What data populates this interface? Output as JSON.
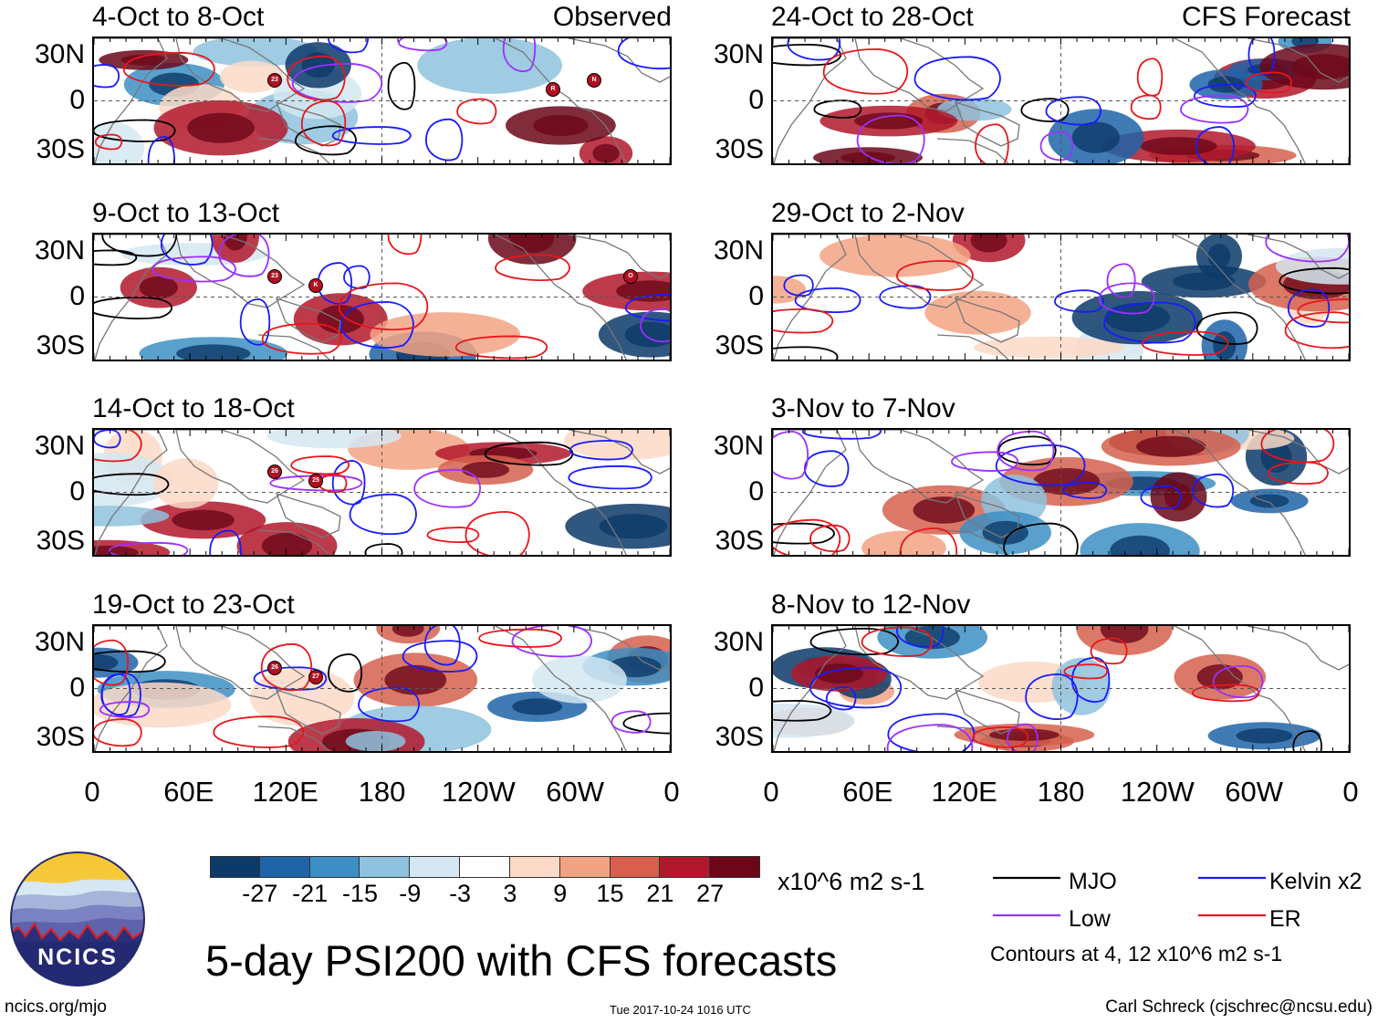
{
  "colors": {
    "mjo": "#000000",
    "low": "#9b30ff",
    "kelvin": "#1a1aff",
    "er": "#e8161b",
    "land": "#777777",
    "scale": [
      "#0c3a69",
      "#1f64a8",
      "#3c8fc4",
      "#8ec2de",
      "#d4e7f2",
      "#ffffff",
      "#fbd9c7",
      "#f3a384",
      "#d6604d",
      "#b2182b",
      "#6b0719"
    ]
  },
  "panels": [
    {
      "title": "4-Oct to 8-Oct",
      "source": "Observed"
    },
    {
      "title": "9-Oct to 13-Oct",
      "source": ""
    },
    {
      "title": "14-Oct to 18-Oct",
      "source": ""
    },
    {
      "title": "19-Oct to 23-Oct",
      "source": ""
    },
    {
      "title": "24-Oct to 28-Oct",
      "source": "CFS Forecast"
    },
    {
      "title": "29-Oct to 2-Nov",
      "source": ""
    },
    {
      "title": "3-Nov to 7-Nov",
      "source": ""
    },
    {
      "title": "8-Nov to 12-Nov",
      "source": ""
    }
  ],
  "axes": {
    "lat_labels": [
      "30N",
      "0",
      "30S"
    ],
    "lon_labels": [
      "0",
      "60E",
      "120E",
      "180",
      "120W",
      "60W",
      "0"
    ]
  },
  "colorbar": {
    "ticks": [
      "-27",
      "-21",
      "-15",
      "-9",
      "-3",
      "3",
      "9",
      "15",
      "21",
      "27"
    ],
    "units": "x10^6 m2 s-1"
  },
  "legend": {
    "mjo": "MJO",
    "kelvin": "Kelvin x2",
    "low": "Low",
    "er": "ER",
    "note": "Contours at 4, 12 x10^6 m2 s-1"
  },
  "title": "5-day PSI200 with CFS forecasts",
  "logo_text": "NCICS",
  "footer": {
    "url": "ncics.org/mjo",
    "timestamp": "Tue 2017-10-24 1016 UTC",
    "credit": "Carl Schreck (cjschrec@ncsu.edu)"
  },
  "storm_markers": [
    "23",
    "R",
    "N",
    "23",
    "K",
    "O",
    "26",
    "25",
    "26",
    "27"
  ]
}
